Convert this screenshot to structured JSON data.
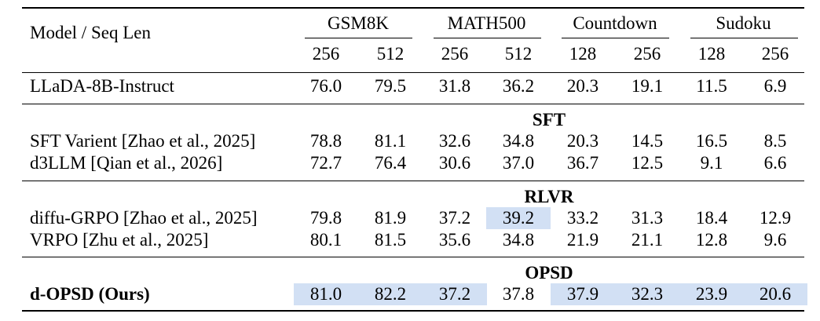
{
  "header": {
    "first": "Model / Seq Len",
    "groups": [
      {
        "name": "GSM8K",
        "lens": [
          "256",
          "512"
        ]
      },
      {
        "name": "MATH500",
        "lens": [
          "256",
          "512"
        ]
      },
      {
        "name": "Countdown",
        "lens": [
          "128",
          "256"
        ]
      },
      {
        "name": "Sudoku",
        "lens": [
          "128",
          "256"
        ]
      }
    ]
  },
  "highlight_color": "#d2e0f4",
  "baseline": {
    "model": "LLaDA-8B-Instruct",
    "values": [
      "76.0",
      "79.5",
      "31.8",
      "36.2",
      "20.3",
      "19.1",
      "11.5",
      "6.9"
    ]
  },
  "sections": [
    {
      "title": "SFT",
      "rows": [
        {
          "model": "SFT Varient [Zhao et al., 2025]",
          "values": [
            "78.8",
            "81.1",
            "32.6",
            "34.8",
            "20.3",
            "14.5",
            "16.5",
            "8.5"
          ]
        },
        {
          "model": "d3LLM [Qian et al., 2026]",
          "values": [
            "72.7",
            "76.4",
            "30.6",
            "37.0",
            "36.7",
            "12.5",
            "9.1",
            "6.6"
          ]
        }
      ]
    },
    {
      "title": "RLVR",
      "rows": [
        {
          "model": "diffu-GRPO [Zhao et al., 2025]",
          "values": [
            "79.8",
            "81.9",
            "37.2",
            "39.2",
            "33.2",
            "31.3",
            "18.4",
            "12.9"
          ],
          "highlight": [
            false,
            false,
            false,
            true,
            false,
            false,
            false,
            false
          ]
        },
        {
          "model": "VRPO [Zhu et al., 2025]",
          "values": [
            "80.1",
            "81.5",
            "35.6",
            "34.8",
            "21.9",
            "21.1",
            "12.8",
            "9.6"
          ]
        }
      ]
    },
    {
      "title": "OPSD",
      "rows": [
        {
          "model": "d-OPSD (Ours)",
          "bold": true,
          "values": [
            "81.0",
            "82.2",
            "37.2",
            "37.8",
            "37.9",
            "32.3",
            "23.9",
            "20.6"
          ],
          "highlight": [
            true,
            true,
            true,
            false,
            true,
            true,
            true,
            true
          ]
        }
      ]
    }
  ]
}
